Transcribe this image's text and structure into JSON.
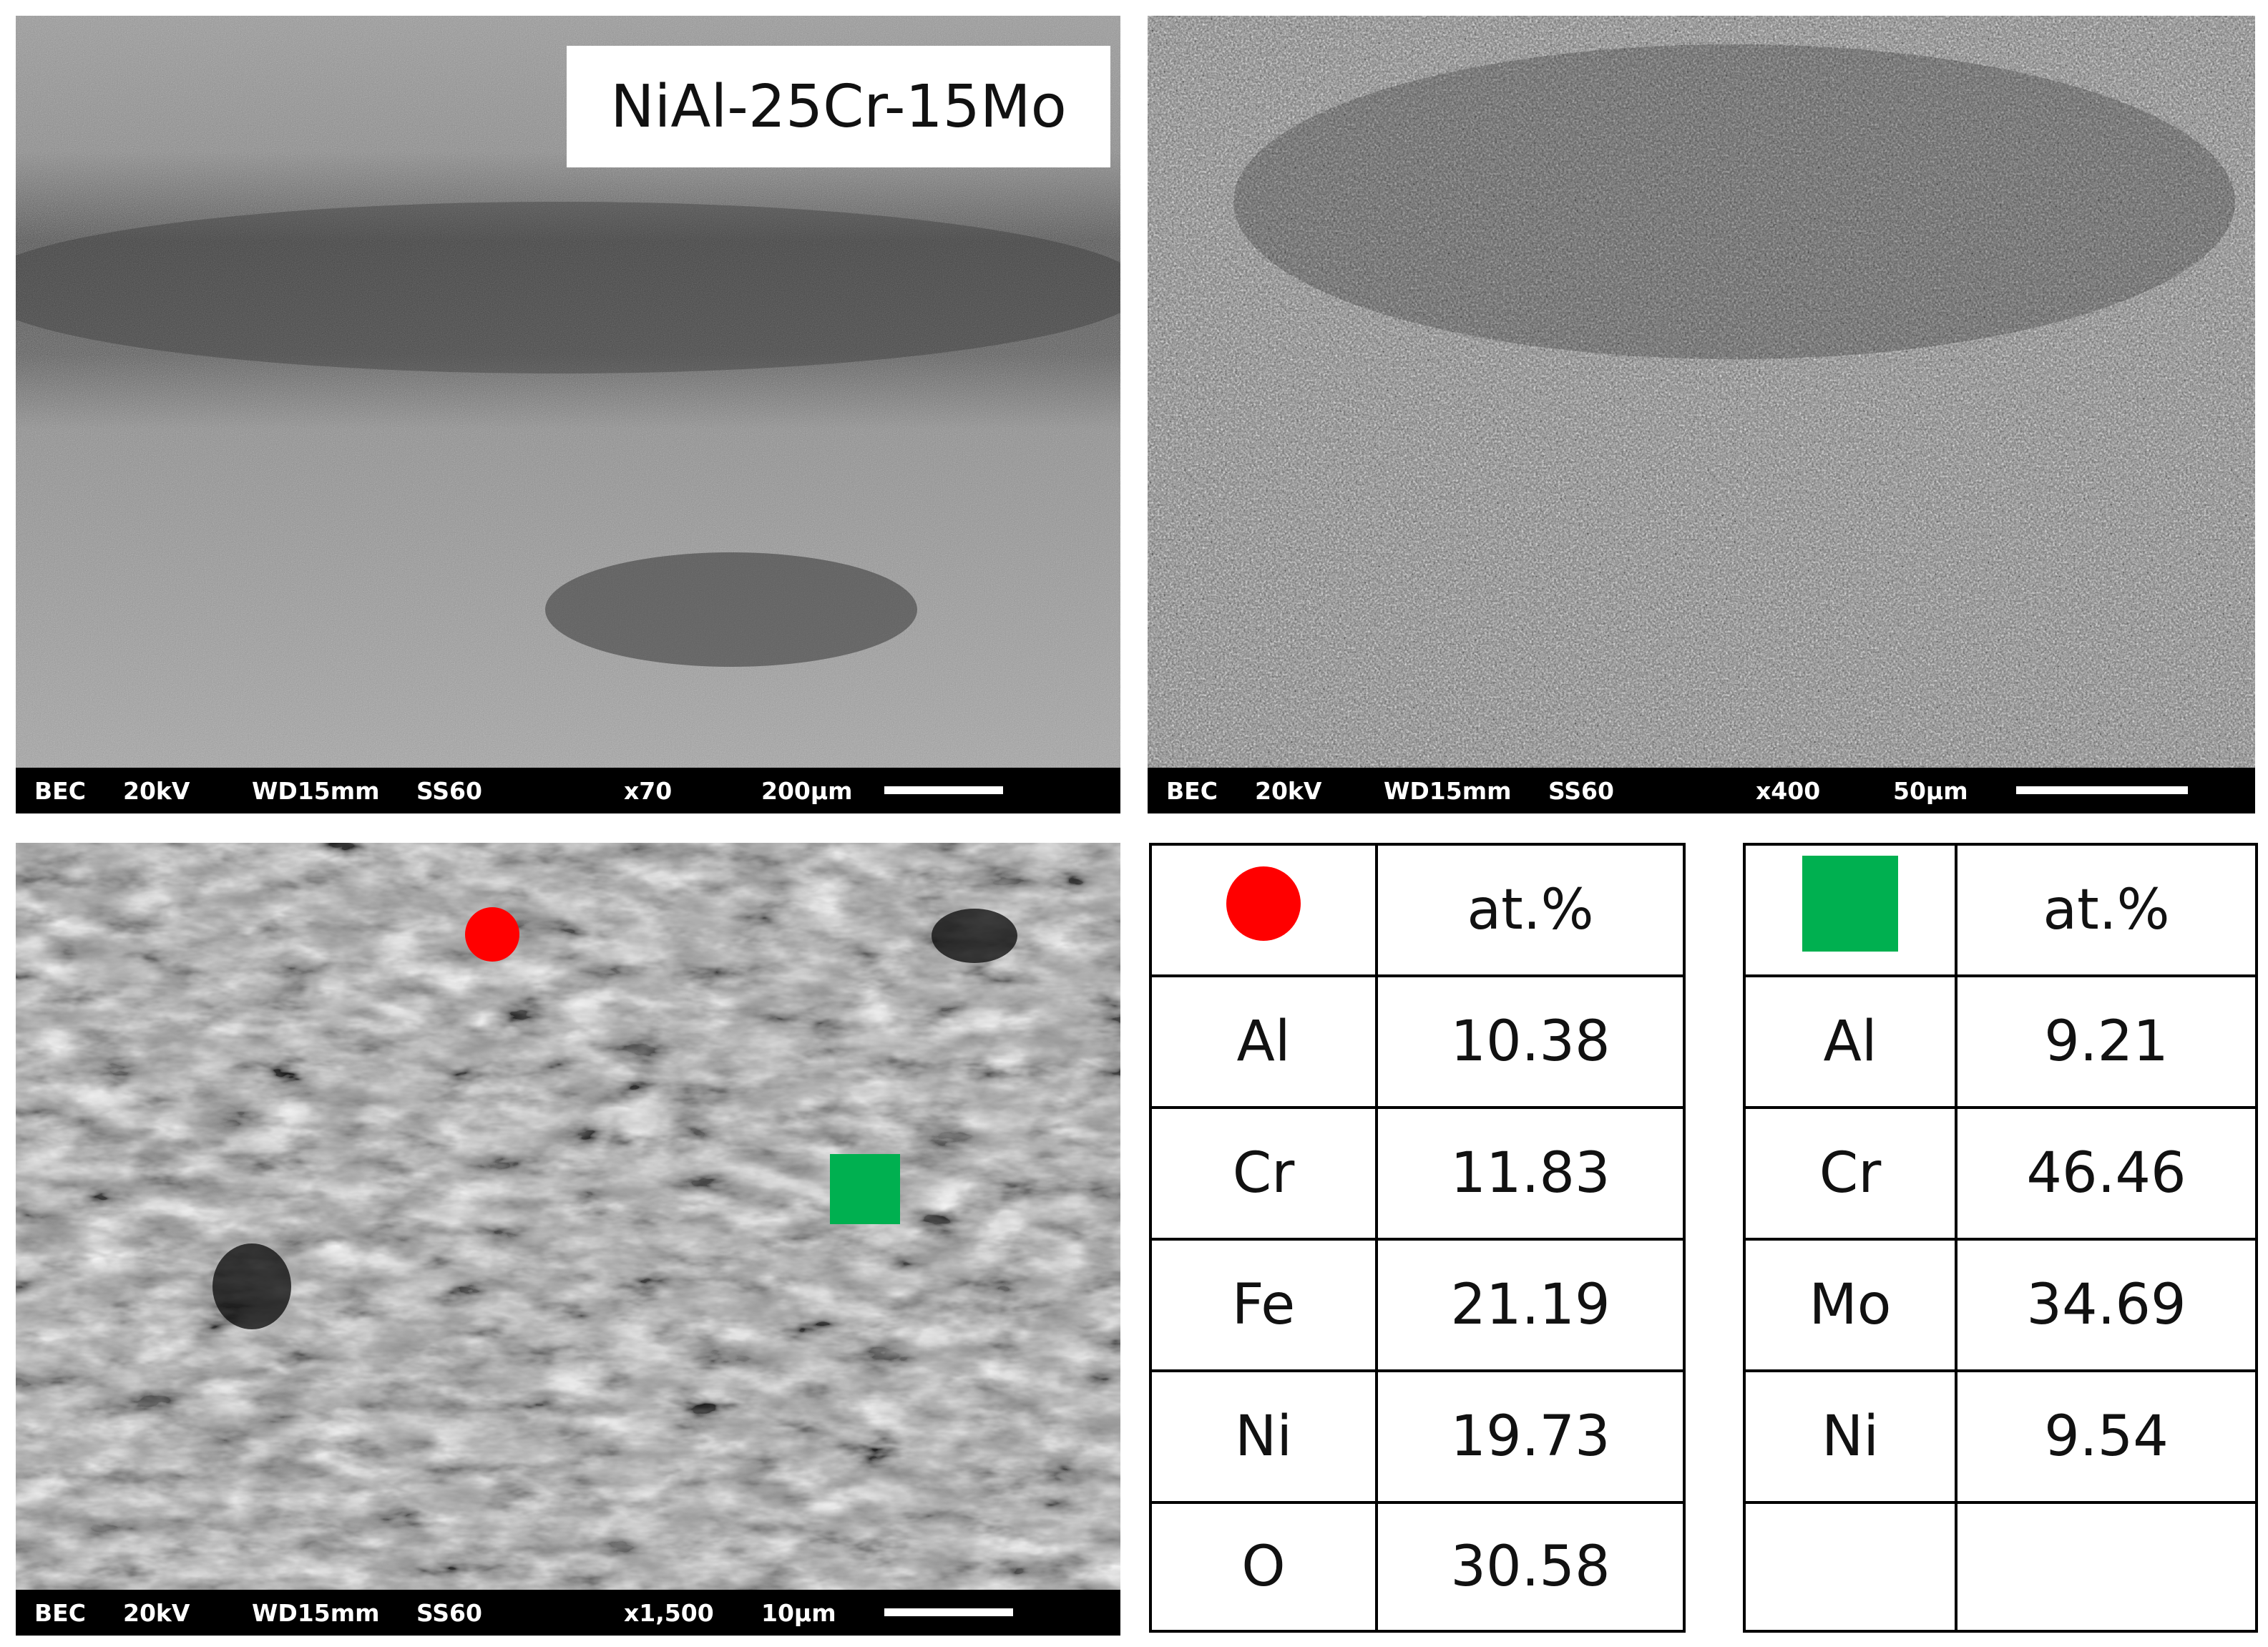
{
  "title": "NiAl-25Cr-15Mo",
  "panels": {
    "top_left": {
      "mode": "BEC",
      "kv": "20kV",
      "wd": "WD15mm",
      "ss": "SS60",
      "magnification": "x70",
      "scale": "200µm"
    },
    "top_right": {
      "mode": "BEC",
      "kv": "20kV",
      "wd": "WD15mm",
      "ss": "SS60",
      "magnification": "x400",
      "scale": "50µm"
    },
    "bottom_left": {
      "mode": "BEC",
      "kv": "20kV",
      "wd": "WD15mm",
      "ss": "SS60",
      "magnification": "x1,500",
      "scale": "10µm",
      "markers": [
        {
          "shape": "circle",
          "color": "#ff0000",
          "name": "red-circle-icon"
        },
        {
          "shape": "square",
          "color": "#00b050",
          "name": "green-square-icon"
        }
      ]
    }
  },
  "tables": {
    "circle": {
      "marker_color": "#ff0000",
      "header": "at.%",
      "rows": [
        {
          "element": "Al",
          "value": "10.38"
        },
        {
          "element": "Cr",
          "value": "11.83"
        },
        {
          "element": "Fe",
          "value": "21.19"
        },
        {
          "element": "Ni",
          "value": "19.73"
        },
        {
          "element": "O",
          "value": "30.58"
        }
      ]
    },
    "square": {
      "marker_color": "#00b050",
      "header": "at.%",
      "rows": [
        {
          "element": "Al",
          "value": "9.21"
        },
        {
          "element": "Cr",
          "value": "46.46"
        },
        {
          "element": "Mo",
          "value": "34.69"
        },
        {
          "element": "Ni",
          "value": "9.54"
        },
        {
          "element": "",
          "value": ""
        }
      ]
    }
  }
}
